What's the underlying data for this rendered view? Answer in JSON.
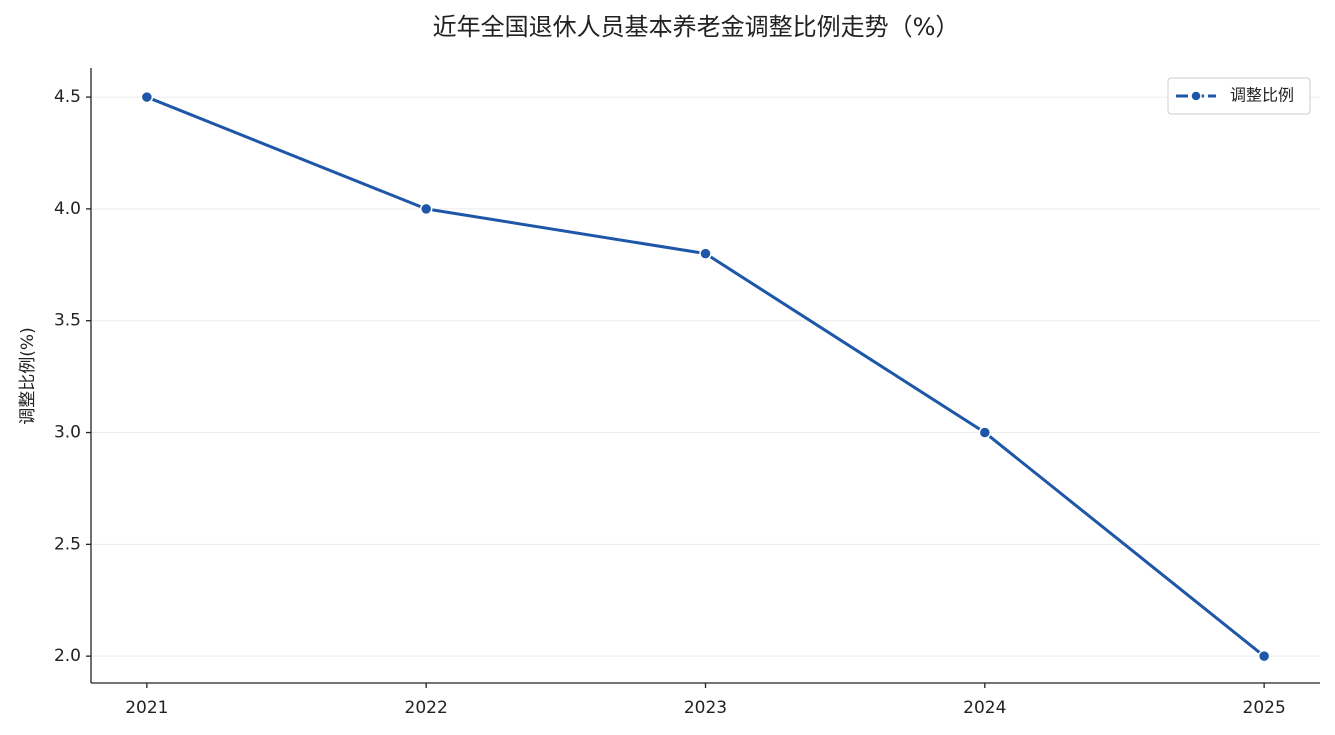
{
  "chart_data": {
    "type": "line",
    "title": "近年全国退休人员基本养老金调整比例走势（%）",
    "y_label": "调整比例(%)",
    "categories": [
      "2021",
      "2022",
      "2023",
      "2024",
      "2025"
    ],
    "series": [
      {
        "name": "调整比例",
        "color": "#1f57a8",
        "values": [
          4.5,
          4.0,
          3.8,
          3.0,
          2.0
        ]
      }
    ],
    "ylim": [
      1.88,
      4.63
    ],
    "yticks": [
      {
        "value": 2,
        "label": "2.0"
      },
      2.5,
      {
        "value": 3,
        "label": "3.0"
      },
      3.5,
      {
        "value": 4,
        "label": "4.0"
      },
      4.5
    ],
    "grid": true,
    "legend": "upper right"
  }
}
